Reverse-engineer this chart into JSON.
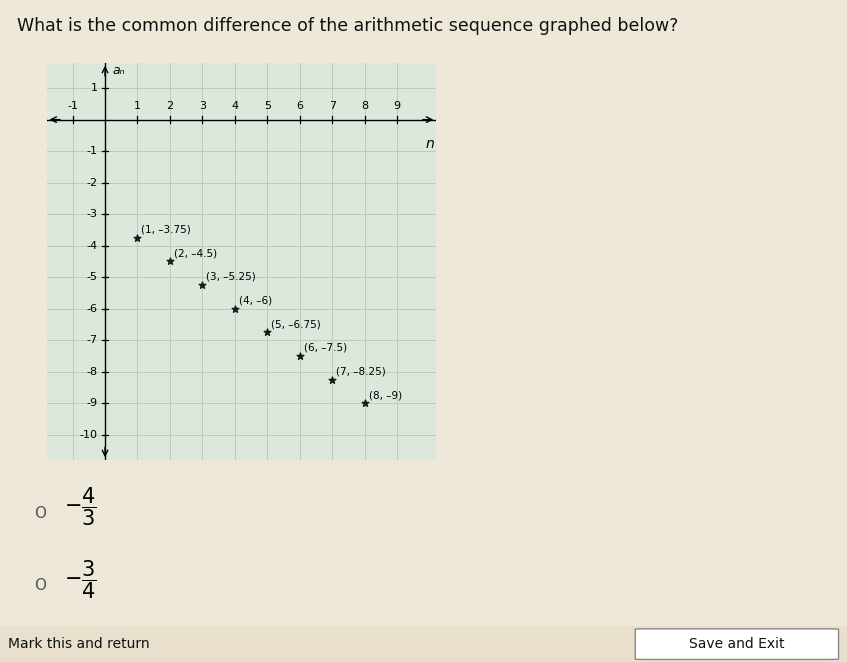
{
  "title": "What is the common difference of the arithmetic sequence graphed below?",
  "title_fontsize": 12.5,
  "background_color": "#ede8d8",
  "grid_color": "#b8cdb8",
  "points": [
    [
      1,
      -3.75
    ],
    [
      2,
      -4.5
    ],
    [
      3,
      -5.25
    ],
    [
      4,
      -6.0
    ],
    [
      5,
      -6.75
    ],
    [
      6,
      -7.5
    ],
    [
      7,
      -8.25
    ],
    [
      8,
      -9.0
    ]
  ],
  "point_labels": [
    "(1, –3.75)",
    "(2, –4.5)",
    "(3, –5.25)",
    "(4, –6)",
    "(5, –6.75)",
    "(6, –7.5)",
    "(7, –8.25)",
    "(8, –9)"
  ],
  "point_color": "#1a1a1a",
  "marker_size": 5,
  "xlabel": "n",
  "ylabel": "aₙ",
  "xlim": [
    -1.8,
    10.2
  ],
  "ylim": [
    -10.8,
    1.8
  ],
  "xtick_vals": [
    -1,
    1,
    2,
    3,
    4,
    5,
    6,
    7,
    8,
    9
  ],
  "ytick_vals": [
    -10,
    -9,
    -8,
    -7,
    -6,
    -5,
    -4,
    -3,
    -2,
    -1,
    1
  ],
  "plot_area_bg": "#dce8dc",
  "save_exit_label": "Save and Exit",
  "mark_return_label": "Mark this and return",
  "label_fontsize": 7.5,
  "tick_fontsize": 8.0
}
